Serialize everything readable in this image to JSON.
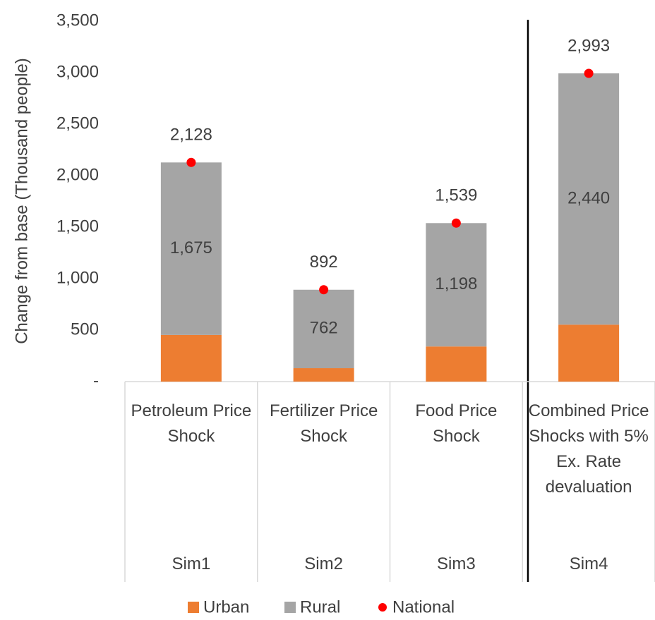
{
  "chart_data": {
    "type": "bar",
    "stacked": true,
    "y_label": "Change from base (Thousand people)",
    "categories": [
      "Petroleum Price Shock",
      "Fertilizer Price Shock",
      "Food Price Shock",
      "Combined Price Shocks with 5% Ex. Rate devaluation"
    ],
    "groups": [
      "Sim1",
      "Sim2",
      "Sim3",
      "Sim4"
    ],
    "series": [
      {
        "name": "Urban",
        "color": "#ed7d31",
        "values": [
          453,
          130,
          341,
          553
        ]
      },
      {
        "name": "Rural",
        "color": "#a5a5a5",
        "values": [
          1675,
          762,
          1198,
          2440
        ],
        "value_labels": [
          "1,675",
          "762",
          "1,198",
          "2,440"
        ]
      },
      {
        "name": "National",
        "color": "#ff0000",
        "type": "scatter",
        "values": [
          2128,
          892,
          1539,
          2993
        ],
        "value_labels": [
          "2,128",
          "892",
          "1,539",
          "2,993"
        ]
      }
    ],
    "ylim": [
      0,
      3500
    ],
    "yticks": [
      {
        "value": 0,
        "label": "-"
      },
      500,
      {
        "value": 1000,
        "label": "1,000"
      },
      {
        "value": 1500,
        "label": "1,500"
      },
      {
        "value": 2000,
        "label": "2,000"
      },
      {
        "value": 2500,
        "label": "2,500"
      },
      {
        "value": 3000,
        "label": "3,000"
      },
      {
        "value": 3500,
        "label": "3,500"
      }
    ],
    "grid": false,
    "legend": "bottom"
  }
}
